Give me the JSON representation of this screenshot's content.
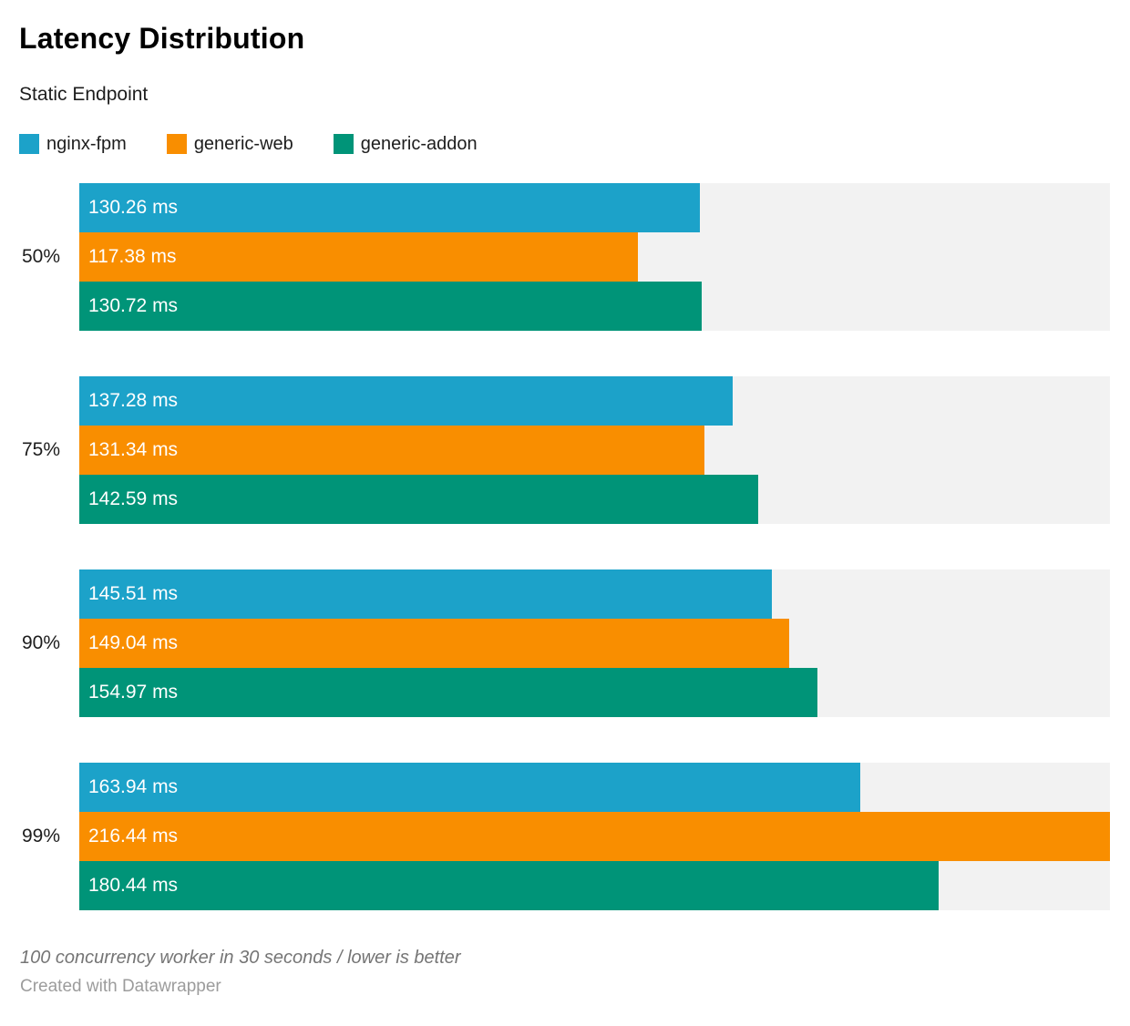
{
  "title": "Latency Distribution",
  "subtitle": "Static Endpoint",
  "legend": [
    {
      "label": "nginx-fpm",
      "color": "#1ca2c9"
    },
    {
      "label": "generic-web",
      "color": "#f98e00"
    },
    {
      "label": "generic-addon",
      "color": "#009478"
    }
  ],
  "note": "100 concurrency worker in 30 seconds / lower is better",
  "credit": "Created with Datawrapper",
  "chart_data": {
    "type": "bar",
    "orientation": "horizontal",
    "title": "Latency Distribution",
    "subtitle": "Static Endpoint",
    "unit": "ms",
    "xlim": [
      0,
      216.44
    ],
    "grid": false,
    "legend_position": "top",
    "track_color": "#f2f2f2",
    "categories": [
      "50%",
      "75%",
      "90%",
      "99%"
    ],
    "series": [
      {
        "name": "nginx-fpm",
        "color": "#1ca2c9",
        "values": [
          130.26,
          137.28,
          145.51,
          163.94
        ],
        "labels": [
          "130.26 ms",
          "137.28 ms",
          "145.51 ms",
          "163.94 ms"
        ]
      },
      {
        "name": "generic-web",
        "color": "#f98e00",
        "values": [
          117.38,
          131.34,
          149.04,
          216.44
        ],
        "labels": [
          "117.38 ms",
          "131.34 ms",
          "149.04 ms",
          "216.44 ms"
        ]
      },
      {
        "name": "generic-addon",
        "color": "#009478",
        "values": [
          130.72,
          142.59,
          154.97,
          180.44
        ],
        "labels": [
          "130.72 ms",
          "142.59 ms",
          "154.97 ms",
          "180.44 ms"
        ]
      }
    ]
  }
}
